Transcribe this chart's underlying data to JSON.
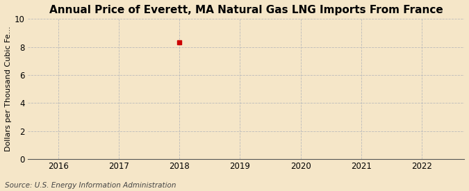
{
  "title": "Annual Price of Everett, MA Natural Gas LNG Imports From France",
  "ylabel": "Dollars per Thousand Cubic Fe...",
  "source": "Source: U.S. Energy Information Administration",
  "background_color": "#f5e6c8",
  "plot_background": "#f5e6c8",
  "data_x": [
    2018
  ],
  "data_y": [
    8.31
  ],
  "marker_color": "#cc0000",
  "marker_size": 4,
  "xlim": [
    2015.5,
    2022.7
  ],
  "ylim": [
    0,
    10
  ],
  "xticks": [
    2016,
    2017,
    2018,
    2019,
    2020,
    2021,
    2022
  ],
  "yticks": [
    0,
    2,
    4,
    6,
    8,
    10
  ],
  "grid_color": "#bbbbbb",
  "title_fontsize": 11,
  "axis_fontsize": 8,
  "tick_fontsize": 8.5,
  "source_fontsize": 7.5
}
